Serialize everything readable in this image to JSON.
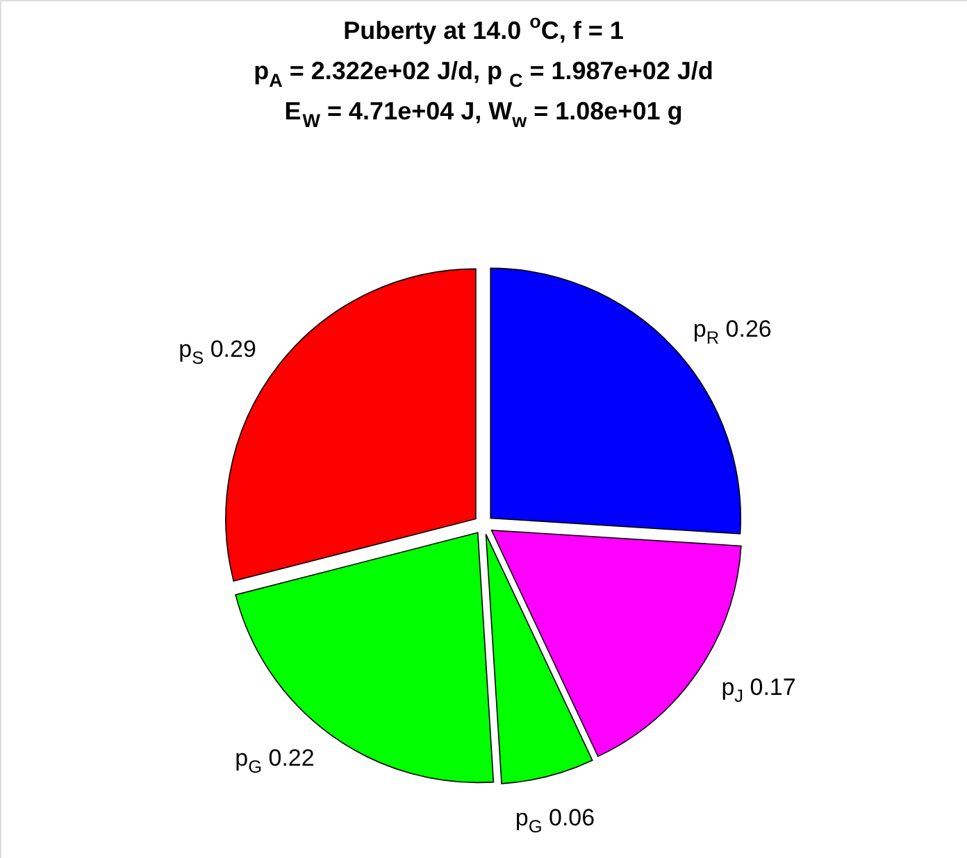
{
  "chart_data": {
    "type": "pie",
    "title": [
      "Puberty at 14.0 $^{o}$C, f = 1",
      "p$_{A}$ = 2.322e+02 J/d,  p$_{C}$ = 1.987e+02 J/d",
      "E$_{W}$ = 4.71e+04 J, W$_{w}$ = 1.08e+01 g"
    ],
    "categories": [
      "p$_{R}$",
      "p$_{J}$",
      "p$_{G}$",
      "p$_{G}$",
      "p$_{S}$"
    ],
    "values": [
      0.26,
      0.17,
      0.06,
      0.22,
      0.29
    ],
    "colors": [
      "#0000ff",
      "#ff00ff",
      "#00ff00",
      "#00ff00",
      "#ff0000"
    ],
    "data_labels": true
  }
}
